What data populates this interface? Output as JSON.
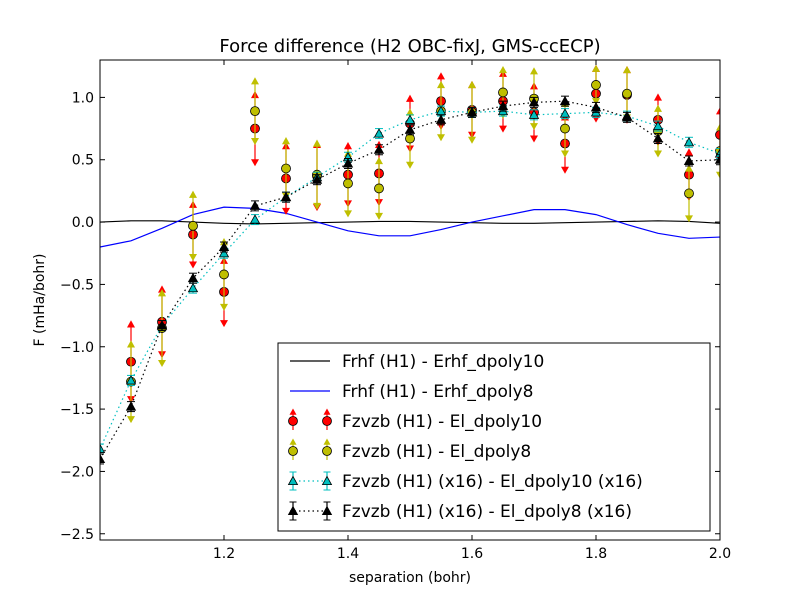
{
  "chart_data": {
    "type": "scatter",
    "title": "Force difference (H2 OBC-fixJ, GMS-ccECP)",
    "xlabel": "separation (bohr)",
    "ylabel": "F (mHa/bohr)",
    "xlim": [
      1.0,
      2.0
    ],
    "ylim": [
      -2.55,
      1.3
    ],
    "xticks": [
      1.2,
      1.4,
      1.6,
      1.8,
      2.0
    ],
    "xtick_labels": [
      "1.2",
      "1.4",
      "1.6",
      "1.8",
      "2.0"
    ],
    "yticks": [
      -2.5,
      -2.0,
      -1.5,
      -1.0,
      -0.5,
      0.0,
      0.5,
      1.0
    ],
    "ytick_labels": [
      "−2.5",
      "−2.0",
      "−1.5",
      "−1.0",
      "−0.5",
      "0.0",
      "0.5",
      "1.0"
    ],
    "grid": false,
    "legend_position": "lower-right",
    "series": [
      {
        "name": "Frhf (H1)  - Erhf_dpoly10",
        "kind": "line",
        "color": "#000000",
        "x": [
          1.0,
          1.05,
          1.1,
          1.15,
          1.2,
          1.25,
          1.3,
          1.35,
          1.4,
          1.45,
          1.5,
          1.55,
          1.6,
          1.65,
          1.7,
          1.75,
          1.8,
          1.85,
          1.9,
          1.95,
          2.0
        ],
        "y": [
          0.0,
          0.01,
          0.01,
          0.0,
          -0.01,
          -0.015,
          -0.01,
          -0.005,
          0.0,
          0.005,
          0.005,
          0.0,
          -0.005,
          -0.01,
          -0.01,
          -0.005,
          0.0,
          0.005,
          0.01,
          0.005,
          -0.01
        ]
      },
      {
        "name": "Frhf (H1)  - Erhf_dpoly8",
        "kind": "line",
        "color": "#0000ff",
        "x": [
          1.0,
          1.05,
          1.1,
          1.15,
          1.2,
          1.25,
          1.3,
          1.35,
          1.4,
          1.45,
          1.5,
          1.55,
          1.6,
          1.65,
          1.7,
          1.75,
          1.8,
          1.85,
          1.9,
          1.95,
          2.0
        ],
        "y": [
          -0.2,
          -0.15,
          -0.05,
          0.06,
          0.12,
          0.11,
          0.07,
          0.0,
          -0.07,
          -0.11,
          -0.11,
          -0.06,
          0.0,
          0.05,
          0.1,
          0.1,
          0.06,
          -0.02,
          -0.09,
          -0.13,
          -0.12
        ]
      },
      {
        "name": "Fzvzb (H1)  - El_dpoly10",
        "kind": "errorbar",
        "marker": "circle",
        "color": "#ff0000",
        "err_color": "#ff0000",
        "x": [
          1.05,
          1.1,
          1.15,
          1.2,
          1.25,
          1.3,
          1.35,
          1.4,
          1.45,
          1.5,
          1.55,
          1.6,
          1.65,
          1.7,
          1.75,
          1.8,
          1.85,
          1.9,
          1.95,
          2.0
        ],
        "y": [
          -1.12,
          -0.8,
          -0.1,
          -0.56,
          0.75,
          0.35,
          0.37,
          0.38,
          0.39,
          0.79,
          0.97,
          0.9,
          0.97,
          0.88,
          0.63,
          1.03,
          1.02,
          0.82,
          0.38,
          0.7
        ],
        "err": [
          0.3,
          0.26,
          0.24,
          0.25,
          0.27,
          0.26,
          0.25,
          0.23,
          0.23,
          0.2,
          0.2,
          0.2,
          0.22,
          0.21,
          0.21,
          0.2,
          0.2,
          0.18,
          0.18,
          0.19
        ]
      },
      {
        "name": "Fzvzb (H1)  - El_dpoly8",
        "kind": "errorbar",
        "marker": "circle",
        "color": "#bfbf00",
        "err_color": "#bfbf00",
        "x": [
          1.05,
          1.1,
          1.15,
          1.2,
          1.25,
          1.3,
          1.35,
          1.4,
          1.45,
          1.5,
          1.55,
          1.6,
          1.65,
          1.7,
          1.75,
          1.8,
          1.85,
          1.9,
          1.95,
          2.0
        ],
        "y": [
          -1.28,
          -0.85,
          -0.03,
          -0.42,
          0.89,
          0.43,
          0.38,
          0.31,
          0.27,
          0.67,
          0.89,
          0.88,
          1.04,
          0.99,
          0.75,
          1.1,
          1.03,
          0.73,
          0.23,
          0.57
        ],
        "err": [
          0.3,
          0.28,
          0.25,
          0.26,
          0.24,
          0.22,
          0.25,
          0.24,
          0.22,
          0.21,
          0.21,
          0.22,
          0.18,
          0.22,
          0.2,
          0.13,
          0.19,
          0.18,
          0.2,
          0.19
        ]
      },
      {
        "name": "Fzvzb (H1)  (x16) - El_dpoly10 (x16)",
        "kind": "errorbar",
        "marker": "triangle",
        "linestyle": "dotted",
        "color": "#00bfbf",
        "err_color": "#00bfbf",
        "x": [
          1.0,
          1.05,
          1.1,
          1.15,
          1.2,
          1.25,
          1.3,
          1.35,
          1.4,
          1.45,
          1.5,
          1.55,
          1.6,
          1.65,
          1.7,
          1.75,
          1.8,
          1.85,
          1.9,
          1.95,
          2.0
        ],
        "y": [
          -1.82,
          -1.27,
          -0.83,
          -0.53,
          -0.25,
          0.02,
          0.2,
          0.36,
          0.52,
          0.71,
          0.82,
          0.89,
          0.88,
          0.89,
          0.86,
          0.87,
          0.88,
          0.85,
          0.77,
          0.64,
          0.55
        ],
        "err": [
          0.04,
          0.04,
          0.04,
          0.04,
          0.04,
          0.04,
          0.04,
          0.04,
          0.04,
          0.04,
          0.04,
          0.04,
          0.04,
          0.04,
          0.04,
          0.04,
          0.04,
          0.04,
          0.04,
          0.04,
          0.04
        ]
      },
      {
        "name": "Fzvzb (H1)  (x16) - El_dpoly8 (x16)",
        "kind": "errorbar",
        "marker": "triangle",
        "linestyle": "dotted",
        "color": "#000000",
        "err_color": "#000000",
        "x": [
          1.0,
          1.05,
          1.1,
          1.15,
          1.2,
          1.25,
          1.3,
          1.35,
          1.4,
          1.45,
          1.5,
          1.55,
          1.6,
          1.65,
          1.7,
          1.75,
          1.8,
          1.85,
          1.9,
          1.95,
          2.0
        ],
        "y": [
          -1.9,
          -1.48,
          -0.83,
          -0.45,
          -0.2,
          0.13,
          0.2,
          0.34,
          0.47,
          0.58,
          0.74,
          0.82,
          0.88,
          0.93,
          0.96,
          0.97,
          0.92,
          0.84,
          0.67,
          0.49,
          0.5
        ],
        "err": [
          0.04,
          0.04,
          0.04,
          0.04,
          0.04,
          0.04,
          0.04,
          0.04,
          0.04,
          0.04,
          0.04,
          0.04,
          0.04,
          0.04,
          0.04,
          0.04,
          0.04,
          0.04,
          0.04,
          0.04,
          0.04
        ]
      }
    ]
  }
}
